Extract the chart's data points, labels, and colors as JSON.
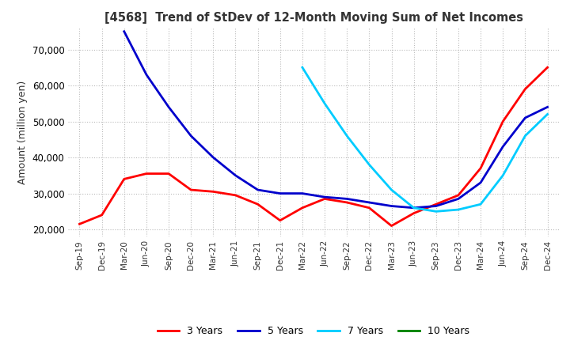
{
  "title": "[4568]  Trend of StDev of 12-Month Moving Sum of Net Incomes",
  "ylabel": "Amount (million yen)",
  "ylim": [
    18000,
    76000
  ],
  "yticks": [
    20000,
    30000,
    40000,
    50000,
    60000,
    70000
  ],
  "background_color": "#ffffff",
  "grid_color": "#bbbbbb",
  "series": {
    "3 Years": {
      "color": "#ff0000",
      "data": [
        [
          "Sep-19",
          21500
        ],
        [
          "Dec-19",
          24000
        ],
        [
          "Mar-20",
          34000
        ],
        [
          "Jun-20",
          35500
        ],
        [
          "Sep-20",
          35500
        ],
        [
          "Dec-20",
          31000
        ],
        [
          "Mar-21",
          30500
        ],
        [
          "Jun-21",
          29500
        ],
        [
          "Sep-21",
          27000
        ],
        [
          "Dec-21",
          22500
        ],
        [
          "Mar-22",
          26000
        ],
        [
          "Jun-22",
          28500
        ],
        [
          "Sep-22",
          27500
        ],
        [
          "Dec-22",
          26000
        ],
        [
          "Mar-23",
          21000
        ],
        [
          "Jun-23",
          24500
        ],
        [
          "Sep-23",
          27000
        ],
        [
          "Dec-23",
          29500
        ],
        [
          "Mar-24",
          37000
        ],
        [
          "Jun-24",
          50000
        ],
        [
          "Sep-24",
          59000
        ],
        [
          "Dec-24",
          65000
        ]
      ]
    },
    "5 Years": {
      "color": "#0000cc",
      "data": [
        [
          "Mar-20",
          75000
        ],
        [
          "Jun-20",
          63000
        ],
        [
          "Sep-20",
          54000
        ],
        [
          "Dec-20",
          46000
        ],
        [
          "Mar-21",
          40000
        ],
        [
          "Jun-21",
          35000
        ],
        [
          "Sep-21",
          31000
        ],
        [
          "Dec-21",
          30000
        ],
        [
          "Mar-22",
          30000
        ],
        [
          "Jun-22",
          29000
        ],
        [
          "Sep-22",
          28500
        ],
        [
          "Dec-22",
          27500
        ],
        [
          "Mar-23",
          26500
        ],
        [
          "Jun-23",
          26000
        ],
        [
          "Sep-23",
          26500
        ],
        [
          "Dec-23",
          28500
        ],
        [
          "Mar-24",
          33000
        ],
        [
          "Jun-24",
          43000
        ],
        [
          "Sep-24",
          51000
        ],
        [
          "Dec-24",
          54000
        ]
      ]
    },
    "7 Years": {
      "color": "#00ccff",
      "data": [
        [
          "Mar-22",
          65000
        ],
        [
          "Jun-22",
          55000
        ],
        [
          "Sep-22",
          46000
        ],
        [
          "Dec-22",
          38000
        ],
        [
          "Mar-23",
          31000
        ],
        [
          "Jun-23",
          26000
        ],
        [
          "Sep-23",
          25000
        ],
        [
          "Dec-23",
          25500
        ],
        [
          "Mar-24",
          27000
        ],
        [
          "Jun-24",
          35000
        ],
        [
          "Sep-24",
          46000
        ],
        [
          "Dec-24",
          52000
        ]
      ]
    },
    "10 Years": {
      "color": "#008000",
      "data": []
    }
  },
  "xtick_labels": [
    "Sep-19",
    "Dec-19",
    "Mar-20",
    "Jun-20",
    "Sep-20",
    "Dec-20",
    "Mar-21",
    "Jun-21",
    "Sep-21",
    "Dec-21",
    "Mar-22",
    "Jun-22",
    "Sep-22",
    "Dec-22",
    "Mar-23",
    "Jun-23",
    "Sep-23",
    "Dec-23",
    "Mar-24",
    "Jun-24",
    "Sep-24",
    "Dec-24"
  ],
  "legend_entries": [
    "3 Years",
    "5 Years",
    "7 Years",
    "10 Years"
  ],
  "legend_colors": [
    "#ff0000",
    "#0000cc",
    "#00ccff",
    "#008000"
  ]
}
